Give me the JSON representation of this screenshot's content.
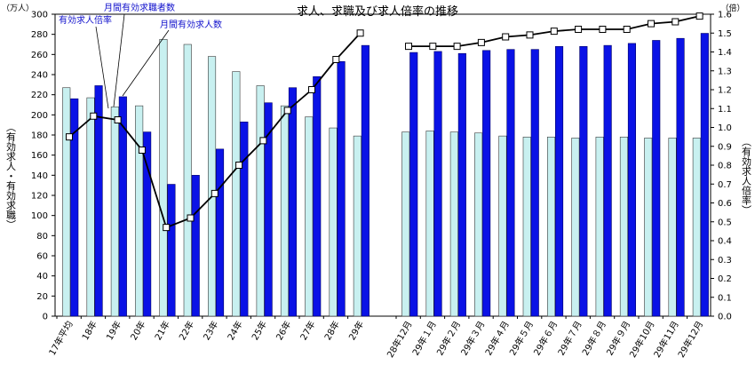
{
  "chart_data": {
    "type": "bar",
    "title": "求人、求職及び求人倍率の推移",
    "left_unit": "（万人）",
    "right_unit": "（倍）",
    "ylabel_left": "（有効求人・有効求職）",
    "ylabel_right": "（有効求人倍率）",
    "ylim_left": [
      0,
      300
    ],
    "ylim_right": [
      0.0,
      1.6
    ],
    "yticks_left": [
      "0",
      "20",
      "40",
      "60",
      "80",
      "100",
      "120",
      "140",
      "160",
      "180",
      "200",
      "220",
      "240",
      "260",
      "280",
      "300"
    ],
    "yticks_right": [
      "0.0",
      "0.1",
      "0.2",
      "0.3",
      "0.4",
      "0.5",
      "0.6",
      "0.7",
      "0.8",
      "0.9",
      "1.0",
      "1.1",
      "1.2",
      "1.3",
      "1.4",
      "1.5",
      "1.6"
    ],
    "categories_left": [
      "17年平均",
      "18年",
      "19年",
      "20年",
      "21年",
      "22年",
      "23年",
      "24年",
      "25年",
      "26年",
      "27年",
      "28年",
      "29年"
    ],
    "categories_right": [
      "28年12月",
      "29年１月",
      "29年２月",
      "29年３月",
      "29年４月",
      "29年５月",
      "29年６月",
      "29年７月",
      "29年８月",
      "29年９月",
      "29年10月",
      "29年11月",
      "29年12月"
    ],
    "series": [
      {
        "name": "月間有効求職者数",
        "axis": "left",
        "color": "#c8f0f0",
        "values_left": [
          227,
          217,
          208,
          209,
          275,
          270,
          258,
          243,
          229,
          209,
          198,
          187,
          179
        ],
        "values_right": [
          183,
          184,
          183,
          182,
          179,
          178,
          178,
          177,
          178,
          178,
          177,
          177,
          177
        ]
      },
      {
        "name": "月間有効求人数",
        "axis": "left",
        "color": "#0a12e6",
        "values_left": [
          216,
          229,
          218,
          183,
          131,
          140,
          166,
          193,
          212,
          227,
          238,
          253,
          269
        ],
        "values_right": [
          262,
          263,
          261,
          264,
          265,
          265,
          268,
          268,
          269,
          271,
          274,
          276,
          281
        ]
      },
      {
        "name": "有効求人倍率",
        "axis": "right",
        "color": "#000000",
        "values_left": [
          0.95,
          1.06,
          1.04,
          0.88,
          0.47,
          0.52,
          0.65,
          0.8,
          0.93,
          1.09,
          1.2,
          1.36,
          1.5
        ],
        "values_right": [
          1.43,
          1.43,
          1.43,
          1.45,
          1.48,
          1.49,
          1.51,
          1.52,
          1.52,
          1.52,
          1.55,
          1.56,
          1.59
        ]
      }
    ],
    "annotations": {
      "ratio": "有効求人倍率",
      "seekers": "月間有効求職者数",
      "openings": "月間有効求人数"
    }
  }
}
